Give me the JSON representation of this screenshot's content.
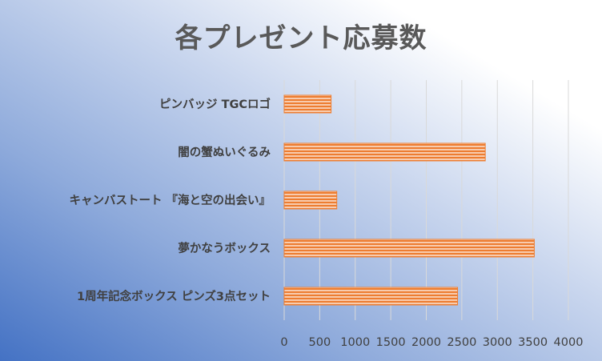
{
  "chart_data": {
    "type": "bar",
    "orientation": "horizontal",
    "title": "各プレゼント応募数",
    "categories": [
      "ピンバッジ TGCロゴ",
      "闇の蟹ぬいぐるみ",
      "キャンバストート 『海と空の出会い』",
      "夢かなうボックス",
      "1周年記念ボックス ピンズ3点セット"
    ],
    "values": [
      660,
      2830,
      740,
      3520,
      2440
    ],
    "xlim": [
      0,
      4000
    ],
    "x_ticks": [
      "0",
      "500",
      "1000",
      "1500",
      "2000",
      "2500",
      "3000",
      "3500",
      "4000"
    ],
    "grid": true,
    "legend": "none",
    "colors": {
      "bar": "#f4b183",
      "bar_stripe": "#ed7d31",
      "grid": "#d9d9d9"
    }
  }
}
